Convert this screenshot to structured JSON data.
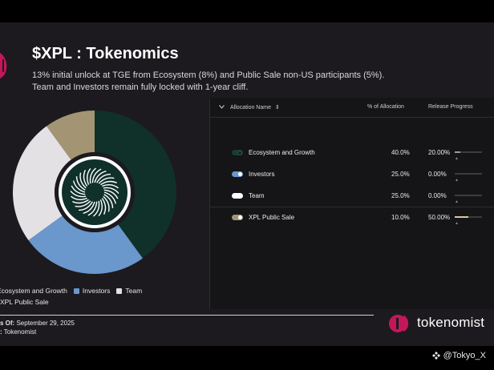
{
  "title": "$XPL : Tokenomics",
  "subtitle_line1": "13% initial unlock at TGE from Ecosystem (8%) and Public Sale non-US participants (5%).",
  "subtitle_line2": "Team and Investors remain fully locked with 1-year cliff.",
  "table": {
    "col_name": "Allocation Name",
    "col_pct": "% of Allocation",
    "col_progress": "Release Progress"
  },
  "chart_data": {
    "type": "pie",
    "donut": true,
    "title": "$XPL : Tokenomics",
    "categories": [
      "Ecosystem and Growth",
      "Investors",
      "Team",
      "XPL Public Sale"
    ],
    "values": [
      40.0,
      25.0,
      25.0,
      10.0
    ],
    "colors": [
      "#10302a",
      "#6a97cc",
      "#e3e1e4",
      "#a39574"
    ],
    "release_progress": [
      20.0,
      0.0,
      0.0,
      50.0
    ],
    "pct_labels": [
      "40.0%",
      "25.0%",
      "25.0%",
      "10.0%"
    ],
    "progress_labels": [
      "20.00%",
      "0.00%",
      "0.00%",
      "50.00%"
    ],
    "legend_position": "bottom"
  },
  "legend": {
    "item1": "Ecosystem and Growth",
    "item2": "Investors",
    "item3": "Team",
    "item4": "XPL Public Sale"
  },
  "footer": {
    "date_label": "s Of:",
    "date_value": "September 29, 2025",
    "source_label": ":",
    "source_value": "Tokenomist"
  },
  "brand": {
    "name": "tokenomist"
  },
  "watermark": "@Tokyo_X",
  "icons": {
    "sort": "sort-icon",
    "collapse": "chevron-down-icon",
    "brand": "tokenomist-logo-icon",
    "watermark": "binance-icon"
  }
}
